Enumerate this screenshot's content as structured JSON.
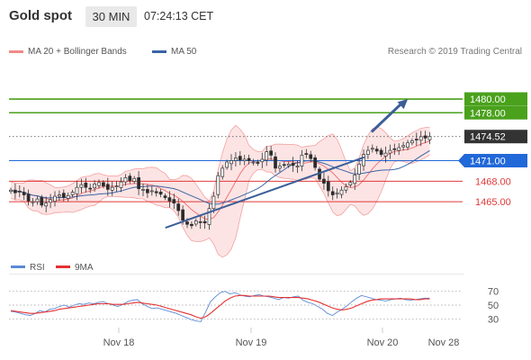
{
  "header": {
    "title": "Gold spot",
    "timeframe": "30 MIN",
    "time": "07:24:13 CET"
  },
  "legend": {
    "bollinger_label": "MA 20 + Bollinger Bands",
    "ma50_label": "MA 50",
    "research": "Research © 2019 Trading Central",
    "rsi_label": "RSI",
    "ma9_label": "9MA"
  },
  "colors": {
    "green": "#4aa11c",
    "blue": "#2168d8",
    "red": "#e03a3a",
    "dark": "#333333",
    "bollinger_fill": "#fde4e4",
    "bollinger_line": "#f3a0a0",
    "ma50": "#3b64a6",
    "trend": "#3b5e98",
    "rsi": "#5b8ad6",
    "rsi_ma": "#e53030"
  },
  "chart_data": [
    {
      "type": "candlestick",
      "instrument": "Gold spot",
      "timeframe": "30 MIN",
      "ylim": [
        1457,
        1485
      ],
      "x_ticks": [
        "Nov 18",
        "Nov 19",
        "Nov 20",
        "Nov 28"
      ],
      "levels": [
        {
          "value": 1480.0,
          "label": "1480.00",
          "color": "#4aa11c",
          "kind": "resistance"
        },
        {
          "value": 1478.0,
          "label": "1478.00",
          "color": "#4aa11c",
          "kind": "resistance"
        },
        {
          "value": 1474.52,
          "label": "1474.52",
          "color": "#333333",
          "kind": "last"
        },
        {
          "value": 1471.0,
          "label": "1471.00",
          "color": "#2168d8",
          "kind": "pivot"
        },
        {
          "value": 1468.0,
          "label": "1468.00",
          "color": "#e03a3a",
          "kind": "support"
        },
        {
          "value": 1465.0,
          "label": "1465.00",
          "color": "#e03a3a",
          "kind": "support"
        }
      ],
      "trendline": {
        "from": [
          0.3435,
          1461.2
        ],
        "to": [
          0.7803,
          1471.5
        ]
      },
      "target_arrow": {
        "from": [
          0.7962,
          1475.2
        ],
        "to": [
          0.8758,
          1480.0
        ]
      },
      "close_series": [
        1466.7,
        1466.3,
        1466.5,
        1466.0,
        1465.1,
        1465.0,
        1465.4,
        1464.5,
        1464.8,
        1465.3,
        1465.8,
        1466.0,
        1465.6,
        1465.9,
        1466.4,
        1467.1,
        1467.5,
        1467.1,
        1466.9,
        1467.6,
        1467.8,
        1467.3,
        1466.8,
        1467.1,
        1467.3,
        1467.9,
        1468.5,
        1468.1,
        1468.4,
        1466.9,
        1466.8,
        1466.3,
        1466.6,
        1466.3,
        1466.1,
        1465.6,
        1465.1,
        1464.8,
        1463.7,
        1462.3,
        1461.7,
        1461.5,
        1462.2,
        1462.0,
        1461.9,
        1464.0,
        1465.8,
        1468.8,
        1469.9,
        1470.8,
        1471.0,
        1471.4,
        1471.1,
        1471.2,
        1471.0,
        1470.8,
        1470.6,
        1471.2,
        1472.3,
        1471.8,
        1469.9,
        1470.2,
        1470.4,
        1470.5,
        1470.3,
        1470.2,
        1471.8,
        1472.0,
        1471.3,
        1470.0,
        1468.3,
        1467.7,
        1466.6,
        1466.0,
        1466.3,
        1466.7,
        1467.2,
        1467.8,
        1468.9,
        1470.5,
        1471.9,
        1472.5,
        1472.8,
        1472.4,
        1471.9,
        1472.1,
        1472.5,
        1472.6,
        1472.9,
        1473.2,
        1473.6,
        1473.9,
        1474.1,
        1474.5,
        1474.3,
        1474.52
      ]
    },
    {
      "type": "line",
      "title": "RSI",
      "ylim": [
        20,
        80
      ],
      "y_ticks": [
        30,
        50,
        70
      ],
      "series": [
        {
          "name": "RSI",
          "values": [
            41,
            40,
            38,
            36,
            35,
            38,
            42,
            40,
            44,
            45,
            48,
            50,
            47,
            50,
            52,
            51,
            53,
            52,
            54,
            55,
            52,
            50,
            48,
            51,
            55,
            57,
            58,
            52,
            48,
            45,
            46,
            44,
            42,
            40,
            38,
            35,
            32,
            29,
            27,
            26,
            40,
            55,
            62,
            68,
            70,
            66,
            68,
            65,
            63,
            62,
            64,
            65,
            63,
            62,
            60,
            58,
            61,
            60,
            62,
            63,
            57,
            54,
            52,
            48,
            44,
            38,
            35,
            40,
            44,
            49,
            55,
            60,
            64,
            62,
            60,
            58,
            57,
            56,
            58,
            59,
            60,
            58,
            57,
            58,
            59,
            60,
            60
          ]
        },
        {
          "name": "9MA",
          "values": [
            42,
            41,
            40,
            39,
            38,
            38,
            39,
            40,
            41,
            42,
            44,
            45,
            46,
            47,
            48,
            49,
            50,
            51,
            52,
            52,
            52,
            51,
            51,
            51,
            52,
            53,
            54,
            53,
            52,
            51,
            50,
            48,
            46,
            44,
            42,
            40,
            38,
            36,
            33,
            31,
            33,
            38,
            44,
            50,
            56,
            60,
            63,
            64,
            64,
            63,
            63,
            63,
            63,
            63,
            62,
            61,
            61,
            61,
            61,
            61,
            60,
            59,
            57,
            55,
            52,
            49,
            46,
            44,
            43,
            44,
            46,
            49,
            52,
            55,
            57,
            58,
            59,
            59,
            59,
            59,
            59,
            59,
            59,
            58,
            58,
            59,
            59
          ]
        }
      ]
    }
  ]
}
